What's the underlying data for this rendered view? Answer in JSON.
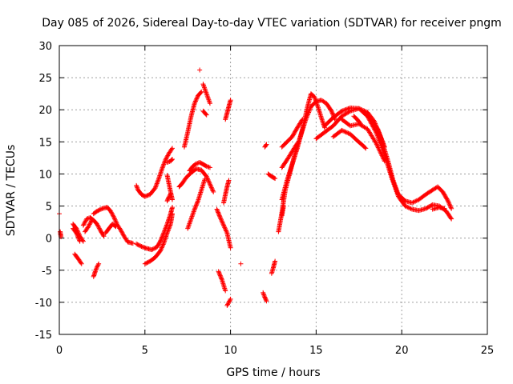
{
  "chart_data": {
    "type": "scatter",
    "title": "Day 085 of 2026, Sidereal Day-to-day VTEC variation (SDTVAR) for receiver pngm",
    "xlabel": "GPS time / hours",
    "ylabel": "SDTVAR / TECUs",
    "xlim": [
      0,
      25
    ],
    "ylim": [
      -15,
      30
    ],
    "xticks": [
      "0",
      "5",
      "10",
      "15",
      "20",
      "25"
    ],
    "yticks": [
      "-15",
      "-10",
      "-5",
      "0",
      "5",
      "10",
      "15",
      "20",
      "25",
      "30"
    ],
    "grid": true,
    "marker": "+",
    "color": "#ff0000",
    "arcs": [
      [
        [
          0.0,
          3.8
        ]
      ],
      [
        [
          0.05,
          1.0
        ],
        [
          0.1,
          0.2
        ]
      ],
      [
        [
          0.8,
          2.2
        ],
        [
          1.0,
          1.5
        ],
        [
          1.2,
          0.3
        ],
        [
          1.4,
          -0.5
        ]
      ],
      [
        [
          0.8,
          1.5
        ],
        [
          1.0,
          0.8
        ],
        [
          1.2,
          -0.5
        ]
      ],
      [
        [
          0.9,
          -2.5
        ],
        [
          1.1,
          -3.2
        ],
        [
          1.3,
          -4.0
        ]
      ],
      [
        [
          1.4,
          2.0
        ],
        [
          1.6,
          3.0
        ],
        [
          1.8,
          3.2
        ],
        [
          2.0,
          2.8
        ],
        [
          2.2,
          2.2
        ],
        [
          2.4,
          1.2
        ],
        [
          2.6,
          0.3
        ]
      ],
      [
        [
          1.5,
          1.0
        ],
        [
          1.7,
          1.8
        ],
        [
          1.9,
          2.8
        ]
      ],
      [
        [
          2.0,
          -6.0
        ],
        [
          2.1,
          -5.2
        ],
        [
          2.2,
          -4.5
        ],
        [
          2.3,
          -4.0
        ]
      ],
      [
        [
          2.0,
          3.8
        ],
        [
          2.2,
          4.2
        ],
        [
          2.5,
          4.6
        ],
        [
          2.8,
          4.8
        ],
        [
          3.0,
          4.2
        ],
        [
          3.2,
          3.2
        ],
        [
          3.4,
          2.0
        ],
        [
          3.6,
          1.2
        ],
        [
          3.8,
          0.2
        ],
        [
          4.0,
          -0.6
        ],
        [
          4.3,
          -0.8
        ]
      ],
      [
        [
          2.7,
          0.8
        ],
        [
          2.9,
          1.5
        ],
        [
          3.1,
          2.2
        ],
        [
          3.3,
          1.8
        ]
      ],
      [
        [
          4.5,
          -0.9
        ],
        [
          4.8,
          -1.3
        ],
        [
          5.1,
          -1.6
        ],
        [
          5.4,
          -1.8
        ],
        [
          5.7,
          -1.4
        ],
        [
          5.9,
          -0.5
        ],
        [
          6.1,
          0.8
        ],
        [
          6.3,
          2.2
        ],
        [
          6.5,
          3.8
        ],
        [
          6.6,
          4.8
        ]
      ],
      [
        [
          4.5,
          8.2
        ],
        [
          4.6,
          7.5
        ],
        [
          4.8,
          6.8
        ],
        [
          5.0,
          6.5
        ],
        [
          5.3,
          6.8
        ],
        [
          5.6,
          7.8
        ],
        [
          5.8,
          9.2
        ],
        [
          6.0,
          10.8
        ],
        [
          6.2,
          12.2
        ],
        [
          6.4,
          13.2
        ],
        [
          6.6,
          14.0
        ]
      ],
      [
        [
          5.0,
          -4.0
        ],
        [
          5.3,
          -3.6
        ],
        [
          5.6,
          -3.0
        ],
        [
          5.9,
          -2.0
        ],
        [
          6.1,
          -0.8
        ],
        [
          6.3,
          0.8
        ],
        [
          6.5,
          2.2
        ],
        [
          6.6,
          3.8
        ]
      ],
      [
        [
          6.3,
          11.8
        ],
        [
          6.5,
          12.0
        ],
        [
          6.6,
          12.3
        ]
      ],
      [
        [
          6.3,
          9.8
        ],
        [
          6.4,
          8.5
        ],
        [
          6.5,
          7.2
        ],
        [
          6.6,
          6.0
        ]
      ],
      [
        [
          6.3,
          5.8
        ],
        [
          6.4,
          6.4
        ],
        [
          6.5,
          6.9
        ]
      ],
      [
        [
          7.0,
          8.0
        ],
        [
          7.2,
          8.6
        ],
        [
          7.4,
          9.4
        ],
        [
          7.7,
          10.2
        ],
        [
          8.0,
          10.8
        ],
        [
          8.3,
          10.6
        ],
        [
          8.6,
          9.6
        ],
        [
          8.8,
          8.4
        ],
        [
          9.0,
          7.2
        ]
      ],
      [
        [
          7.3,
          14.2
        ],
        [
          7.5,
          16.5
        ],
        [
          7.7,
          19.0
        ],
        [
          7.9,
          21.0
        ],
        [
          8.1,
          22.2
        ],
        [
          8.3,
          22.8
        ]
      ],
      [
        [
          7.5,
          1.5
        ],
        [
          7.7,
          3.0
        ],
        [
          7.9,
          4.5
        ],
        [
          8.1,
          5.8
        ],
        [
          8.3,
          7.5
        ],
        [
          8.5,
          9.2
        ]
      ],
      [
        [
          7.6,
          10.5
        ],
        [
          7.8,
          11.2
        ],
        [
          8.0,
          11.6
        ],
        [
          8.2,
          11.8
        ],
        [
          8.4,
          11.5
        ],
        [
          8.6,
          11.2
        ],
        [
          8.8,
          11.0
        ]
      ],
      [
        [
          8.2,
          26.2
        ]
      ],
      [
        [
          8.4,
          24.0
        ],
        [
          8.6,
          22.5
        ],
        [
          8.8,
          21.0
        ]
      ],
      [
        [
          8.4,
          19.8
        ],
        [
          8.6,
          19.2
        ]
      ],
      [
        [
          9.2,
          4.5
        ],
        [
          9.4,
          3.2
        ],
        [
          9.6,
          2.0
        ],
        [
          9.8,
          0.8
        ],
        [
          10.0,
          -1.5
        ]
      ],
      [
        [
          9.3,
          -5.2
        ],
        [
          9.5,
          -6.5
        ],
        [
          9.7,
          -8.2
        ]
      ],
      [
        [
          9.6,
          5.5
        ],
        [
          9.7,
          6.8
        ],
        [
          9.8,
          8.0
        ],
        [
          9.9,
          9.0
        ]
      ],
      [
        [
          9.7,
          18.5
        ],
        [
          9.8,
          19.5
        ],
        [
          9.9,
          20.5
        ],
        [
          10.0,
          21.5
        ]
      ],
      [
        [
          9.8,
          -10.5
        ],
        [
          9.9,
          -10.0
        ],
        [
          10.0,
          -9.5
        ]
      ],
      [
        [
          10.6,
          -4.0
        ]
      ],
      [
        [
          11.9,
          -8.5
        ],
        [
          12.0,
          -9.2
        ],
        [
          12.1,
          -9.8
        ]
      ],
      [
        [
          12.0,
          14.2
        ],
        [
          12.1,
          14.6
        ]
      ],
      [
        [
          12.2,
          10.0
        ],
        [
          12.4,
          9.6
        ],
        [
          12.6,
          9.3
        ]
      ],
      [
        [
          12.4,
          -5.5
        ],
        [
          12.5,
          -4.6
        ],
        [
          12.6,
          -3.6
        ]
      ],
      [
        [
          12.8,
          1.0
        ],
        [
          13.0,
          4.0
        ],
        [
          13.2,
          7.5
        ],
        [
          13.5,
          10.5
        ],
        [
          13.8,
          13.5
        ],
        [
          14.1,
          16.0
        ],
        [
          14.4,
          18.5
        ],
        [
          14.7,
          20.5
        ],
        [
          15.0,
          21.3
        ],
        [
          15.3,
          21.5
        ],
        [
          15.6,
          21.0
        ],
        [
          15.9,
          19.8
        ],
        [
          16.1,
          18.5
        ]
      ],
      [
        [
          13.0,
          6.0
        ],
        [
          13.3,
          9.0
        ],
        [
          13.6,
          11.5
        ],
        [
          13.9,
          14.0
        ],
        [
          14.2,
          17.0
        ],
        [
          14.5,
          20.5
        ],
        [
          14.7,
          22.5
        ],
        [
          14.9,
          22.0
        ],
        [
          15.1,
          20.5
        ],
        [
          15.3,
          18.8
        ],
        [
          15.5,
          17.2
        ]
      ],
      [
        [
          13.0,
          14.2
        ],
        [
          13.3,
          15.0
        ],
        [
          13.6,
          15.8
        ],
        [
          13.9,
          17.2
        ],
        [
          14.2,
          18.5
        ]
      ],
      [
        [
          13.0,
          11.0
        ],
        [
          13.3,
          12.2
        ],
        [
          13.6,
          13.5
        ],
        [
          13.9,
          14.8
        ]
      ],
      [
        [
          13.0,
          3.5
        ],
        [
          13.1,
          5.0
        ]
      ],
      [
        [
          15.0,
          15.5
        ],
        [
          15.5,
          16.5
        ],
        [
          16.0,
          17.5
        ],
        [
          16.5,
          19.0
        ],
        [
          17.0,
          19.8
        ],
        [
          17.5,
          20.2
        ],
        [
          18.0,
          19.6
        ],
        [
          18.4,
          18.2
        ],
        [
          18.8,
          15.5
        ],
        [
          19.2,
          12.0
        ],
        [
          19.5,
          9.0
        ],
        [
          19.8,
          6.8
        ],
        [
          20.2,
          5.8
        ],
        [
          20.6,
          5.5
        ],
        [
          21.0,
          6.0
        ],
        [
          21.4,
          6.8
        ],
        [
          21.8,
          7.5
        ],
        [
          22.1,
          8.0
        ],
        [
          22.4,
          7.2
        ],
        [
          22.7,
          5.8
        ],
        [
          22.9,
          4.6
        ]
      ],
      [
        [
          15.5,
          17.5
        ],
        [
          16.0,
          18.8
        ],
        [
          16.5,
          19.8
        ],
        [
          17.0,
          20.3
        ],
        [
          17.5,
          20.2
        ],
        [
          18.0,
          19.0
        ],
        [
          18.5,
          16.5
        ],
        [
          19.0,
          13.0
        ],
        [
          19.4,
          9.5
        ],
        [
          19.8,
          6.5
        ],
        [
          20.2,
          5.0
        ],
        [
          20.6,
          4.5
        ],
        [
          21.0,
          4.3
        ],
        [
          21.4,
          4.6
        ],
        [
          21.8,
          5.2
        ],
        [
          22.2,
          5.0
        ],
        [
          22.6,
          4.2
        ],
        [
          22.9,
          3.0
        ]
      ],
      [
        [
          16.0,
          15.8
        ],
        [
          16.5,
          16.8
        ],
        [
          17.0,
          16.2
        ],
        [
          17.4,
          15.2
        ],
        [
          17.7,
          14.5
        ],
        [
          17.9,
          14.0
        ]
      ],
      [
        [
          16.5,
          18.5
        ],
        [
          17.0,
          17.5
        ],
        [
          17.5,
          17.8
        ],
        [
          18.0,
          17.0
        ],
        [
          18.5,
          14.8
        ],
        [
          19.0,
          12.0
        ]
      ],
      [
        [
          17.2,
          19.0
        ],
        [
          17.4,
          18.5
        ],
        [
          17.6,
          17.8
        ]
      ],
      [
        [
          17.8,
          19.5
        ],
        [
          18.2,
          18.5
        ],
        [
          18.6,
          17.0
        ],
        [
          19.0,
          14.2
        ]
      ],
      [
        [
          21.8,
          4.5
        ],
        [
          22.2,
          4.8
        ],
        [
          22.5,
          4.6
        ]
      ]
    ]
  }
}
